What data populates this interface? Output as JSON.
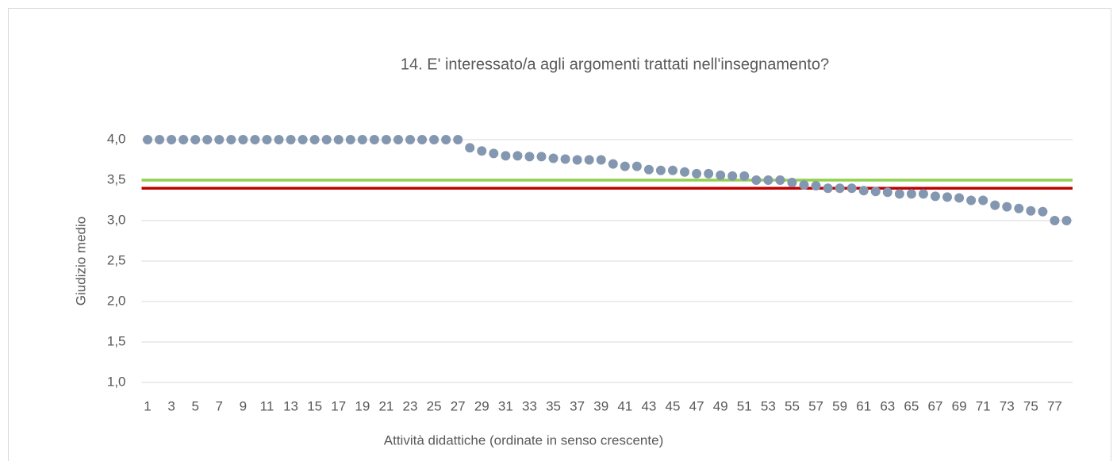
{
  "chart_data": {
    "type": "scatter",
    "title": "14. E' interessato/a agli argomenti trattati nell'insegnamento?",
    "x_label": "Attività didattiche (ordinate in senso crescente)",
    "y_label": "Giudizio medio",
    "categories": [
      1,
      null,
      3,
      null,
      5,
      null,
      7,
      null,
      9,
      null,
      11,
      null,
      13,
      null,
      15,
      null,
      17,
      null,
      19,
      null,
      21,
      null,
      23,
      null,
      25,
      null,
      27,
      null,
      29,
      null,
      31,
      null,
      33,
      null,
      35,
      null,
      37,
      null,
      39,
      null,
      41,
      null,
      43,
      null,
      45,
      null,
      47,
      null,
      49,
      null,
      51,
      null,
      53,
      null,
      55,
      null,
      57,
      null,
      59,
      null,
      61,
      null,
      63,
      null,
      65,
      null,
      67,
      null,
      69,
      null,
      71,
      null,
      73,
      null,
      75,
      null,
      77,
      null
    ],
    "values": [
      4,
      4,
      4,
      4,
      4,
      4,
      4,
      4,
      4,
      4,
      4,
      4,
      4,
      4,
      4,
      4,
      4,
      4,
      4,
      4,
      4,
      4,
      4,
      4,
      4,
      4,
      4,
      3.9,
      3.86,
      3.83,
      3.8,
      3.8,
      3.79,
      3.79,
      3.77,
      3.76,
      3.75,
      3.75,
      3.75,
      3.7,
      3.67,
      3.67,
      3.63,
      3.62,
      3.62,
      3.6,
      3.58,
      3.58,
      3.56,
      3.55,
      3.55,
      3.5,
      3.5,
      3.5,
      3.47,
      3.44,
      3.43,
      3.4,
      3.4,
      3.4,
      3.37,
      3.36,
      3.35,
      3.33,
      3.33,
      3.33,
      3.3,
      3.29,
      3.28,
      3.25,
      3.25,
      3.19,
      3.17,
      3.15,
      3.12,
      3.11,
      3.0,
      3.0
    ],
    "color": "#8497b0",
    "reference_lines": [
      {
        "value": 3.5,
        "color": "#92d050"
      },
      {
        "value": 3.4,
        "color": "#c00000"
      }
    ],
    "ylim": [
      1,
      4
    ],
    "yticks": [
      {
        "value": 1,
        "label": "1,0"
      },
      {
        "value": 1.5,
        "label": "1,5"
      },
      {
        "value": 2,
        "label": "2,0"
      },
      {
        "value": 2.5,
        "label": "2,5"
      },
      {
        "value": 3,
        "label": "3,0"
      },
      {
        "value": 3.5,
        "label": "3,5"
      },
      {
        "value": 4,
        "label": "4,0"
      }
    ],
    "grid": true
  }
}
